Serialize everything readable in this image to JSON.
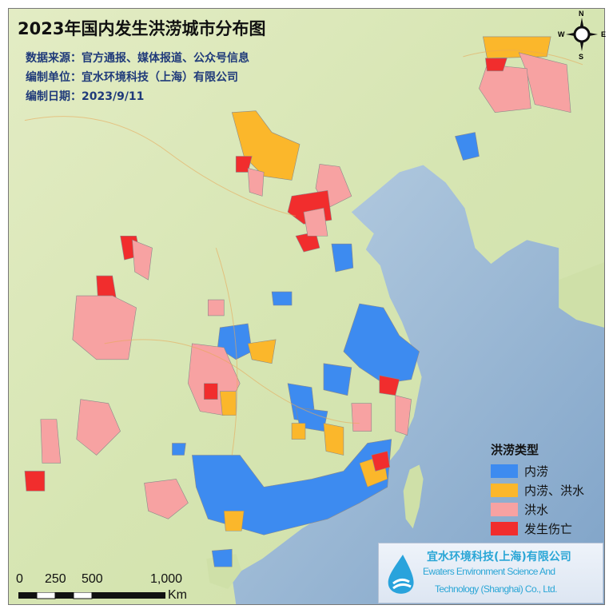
{
  "title": "2023年国内发生洪涝城市分布图",
  "source": "数据来源：官方通报、媒体报道、公众号信息",
  "compiler": "编制单位：宜水环境科技（上海）有限公司",
  "date": "编制日期：2023/9/11",
  "legend": {
    "title": "洪涝类型",
    "items": [
      {
        "label": "内涝",
        "color": "#3d8bf0"
      },
      {
        "label": "内涝、洪水",
        "color": "#fbb72b"
      },
      {
        "label": "洪水",
        "color": "#f7a2a2"
      },
      {
        "label": "发生伤亡",
        "color": "#f12d2d"
      }
    ]
  },
  "scale_bar": {
    "ticks": [
      "0",
      "250",
      "500",
      "1,000"
    ],
    "unit": "Km"
  },
  "compass": {
    "n": "N",
    "s": "S",
    "e": "E",
    "w": "W"
  },
  "logo": {
    "cn": "宜水环境科技(上海)有限公司",
    "en_line1": "Ewaters Environment Science And",
    "en_line2": "Technology (Shanghai) Co., Ltd."
  },
  "colors": {
    "land": "#d9e6b8",
    "sea": "#9fbcd8"
  }
}
